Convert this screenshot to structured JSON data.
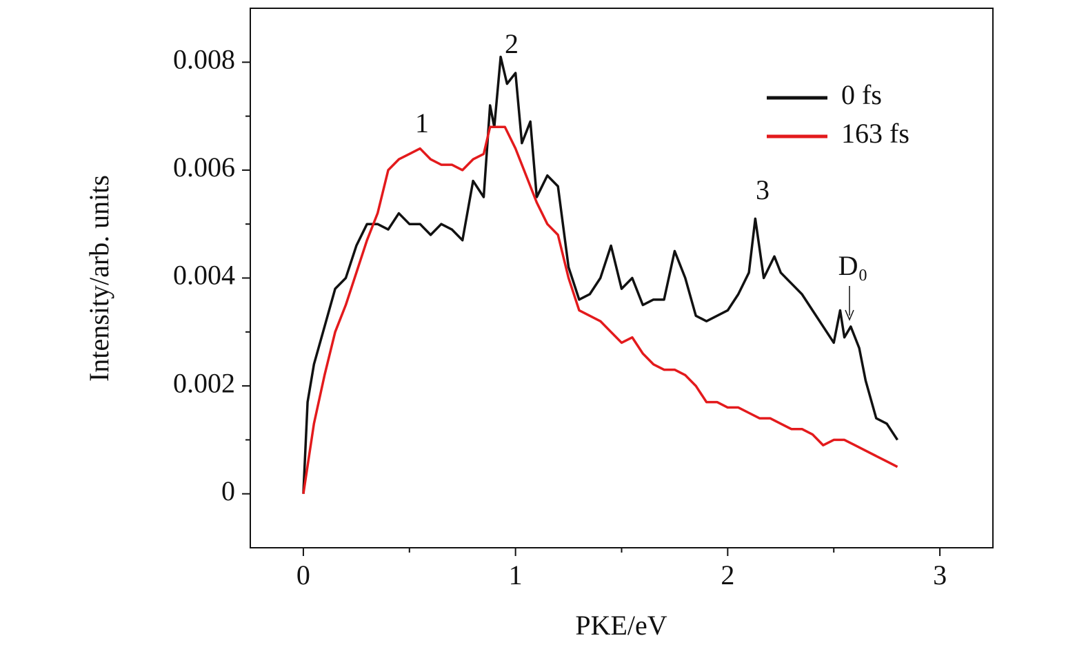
{
  "chart_data": {
    "type": "line",
    "xlabel": "PKE/eV",
    "ylabel": "Intensity/arb. units",
    "xlim": [
      -0.25,
      3.25
    ],
    "ylim": [
      -0.001,
      0.009
    ],
    "xticks": [
      0,
      1,
      2,
      3
    ],
    "yticks": [
      0,
      0.002,
      0.004,
      0.006,
      0.008
    ],
    "xminorticks": [
      0.5,
      1.5,
      2.5
    ],
    "yminorticks": [
      0.001,
      0.003,
      0.005,
      0.007
    ],
    "legend": "upper right",
    "grid": false,
    "annotations": [
      "1",
      "2",
      "3",
      "D₀"
    ],
    "series": [
      {
        "name": "0 fs",
        "color": "#111111",
        "x": [
          0,
          0.02,
          0.05,
          0.1,
          0.15,
          0.2,
          0.25,
          0.3,
          0.35,
          0.4,
          0.45,
          0.5,
          0.55,
          0.6,
          0.65,
          0.7,
          0.75,
          0.8,
          0.85,
          0.88,
          0.9,
          0.93,
          0.96,
          1.0,
          1.03,
          1.07,
          1.1,
          1.15,
          1.2,
          1.25,
          1.3,
          1.35,
          1.4,
          1.45,
          1.5,
          1.55,
          1.6,
          1.65,
          1.7,
          1.75,
          1.8,
          1.85,
          1.9,
          1.95,
          2.0,
          2.05,
          2.1,
          2.13,
          2.17,
          2.22,
          2.25,
          2.3,
          2.35,
          2.4,
          2.45,
          2.5,
          2.53,
          2.55,
          2.58,
          2.62,
          2.65,
          2.7,
          2.75,
          2.8
        ],
        "values": [
          0,
          0.0017,
          0.0024,
          0.0031,
          0.0038,
          0.004,
          0.0046,
          0.005,
          0.005,
          0.0049,
          0.0052,
          0.005,
          0.005,
          0.0048,
          0.005,
          0.0049,
          0.0047,
          0.0058,
          0.0055,
          0.0072,
          0.0068,
          0.0081,
          0.0076,
          0.0078,
          0.0065,
          0.0069,
          0.0055,
          0.0059,
          0.0057,
          0.0042,
          0.0036,
          0.0037,
          0.004,
          0.0046,
          0.0038,
          0.004,
          0.0035,
          0.0036,
          0.0036,
          0.0045,
          0.004,
          0.0033,
          0.0032,
          0.0033,
          0.0034,
          0.0037,
          0.0041,
          0.0051,
          0.004,
          0.0044,
          0.0041,
          0.0039,
          0.0037,
          0.0034,
          0.0031,
          0.0028,
          0.0034,
          0.0029,
          0.0031,
          0.0027,
          0.0021,
          0.0014,
          0.0013,
          0.001
        ]
      },
      {
        "name": "163 fs",
        "color": "#e31a1c",
        "x": [
          0,
          0.05,
          0.1,
          0.15,
          0.2,
          0.25,
          0.3,
          0.35,
          0.4,
          0.45,
          0.5,
          0.55,
          0.6,
          0.65,
          0.7,
          0.75,
          0.8,
          0.85,
          0.88,
          0.95,
          1.0,
          1.05,
          1.1,
          1.15,
          1.2,
          1.25,
          1.3,
          1.35,
          1.4,
          1.45,
          1.5,
          1.55,
          1.6,
          1.65,
          1.7,
          1.75,
          1.8,
          1.85,
          1.9,
          1.95,
          2.0,
          2.05,
          2.1,
          2.15,
          2.2,
          2.25,
          2.3,
          2.35,
          2.4,
          2.45,
          2.5,
          2.55,
          2.6,
          2.65,
          2.7,
          2.75,
          2.8
        ],
        "values": [
          0,
          0.0013,
          0.0022,
          0.003,
          0.0035,
          0.0041,
          0.0047,
          0.0052,
          0.006,
          0.0062,
          0.0063,
          0.0064,
          0.0062,
          0.0061,
          0.0061,
          0.006,
          0.0062,
          0.0063,
          0.0068,
          0.0068,
          0.0064,
          0.0059,
          0.0054,
          0.005,
          0.0048,
          0.004,
          0.0034,
          0.0033,
          0.0032,
          0.003,
          0.0028,
          0.0029,
          0.0026,
          0.0024,
          0.0023,
          0.0023,
          0.0022,
          0.002,
          0.0017,
          0.0017,
          0.0016,
          0.0016,
          0.0015,
          0.0014,
          0.0014,
          0.0013,
          0.0012,
          0.0012,
          0.0011,
          0.0009,
          0.001,
          0.001,
          0.0009,
          0.0008,
          0.0007,
          0.0006,
          0.0005
        ]
      }
    ]
  }
}
